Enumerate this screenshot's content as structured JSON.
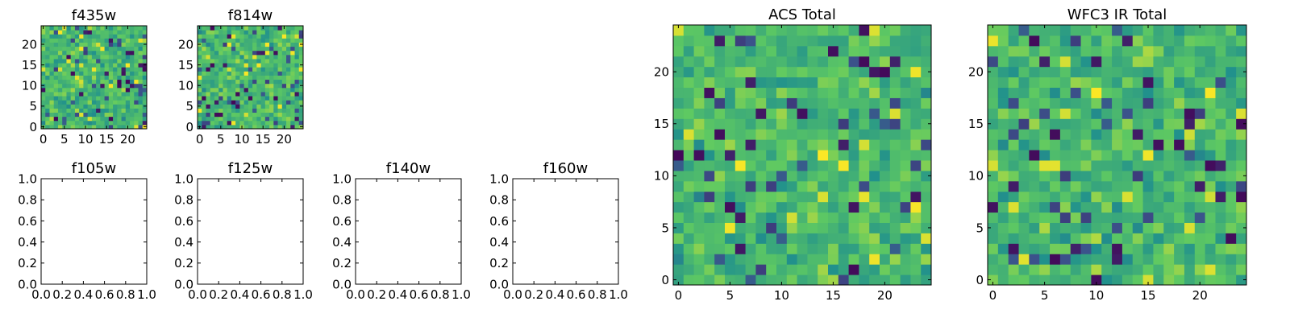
{
  "colors": {
    "background": "#ffffff",
    "axes": "#000000",
    "colormap": "viridis",
    "colormap_stops": [
      "#440154",
      "#3b528b",
      "#21918c",
      "#5ec962",
      "#fde725"
    ]
  },
  "chart_data": [
    {
      "id": "f435w",
      "type": "heatmap",
      "title": "f435w",
      "rows": 25,
      "cols": 25,
      "xlim": [
        -0.5,
        24.5
      ],
      "ylim": [
        -0.5,
        24.5
      ],
      "xticks": [
        0,
        5,
        10,
        15,
        20
      ],
      "yticks": [
        0,
        5,
        10,
        15,
        20
      ],
      "value_range": [
        0,
        1
      ],
      "seed": 4351,
      "grid": false
    },
    {
      "id": "f814w",
      "type": "heatmap",
      "title": "f814w",
      "rows": 25,
      "cols": 25,
      "xlim": [
        -0.5,
        24.5
      ],
      "ylim": [
        -0.5,
        24.5
      ],
      "xticks": [
        0,
        5,
        10,
        15,
        20
      ],
      "yticks": [
        0,
        5,
        10,
        15,
        20
      ],
      "value_range": [
        0,
        1
      ],
      "seed": 8141,
      "grid": false
    },
    {
      "id": "f105w",
      "type": "scatter",
      "title": "f105w",
      "xlim": [
        0,
        1
      ],
      "ylim": [
        0,
        1
      ],
      "xticks": [
        "0.0",
        "0.2",
        "0.4",
        "0.6",
        "0.8",
        "1.0"
      ],
      "yticks": [
        "0.0",
        "0.2",
        "0.4",
        "0.6",
        "0.8",
        "1.0"
      ],
      "series": [],
      "grid": false
    },
    {
      "id": "f125w",
      "type": "scatter",
      "title": "f125w",
      "xlim": [
        0,
        1
      ],
      "ylim": [
        0,
        1
      ],
      "xticks": [
        "0.0",
        "0.2",
        "0.4",
        "0.6",
        "0.8",
        "1.0"
      ],
      "yticks": [
        "0.0",
        "0.2",
        "0.4",
        "0.6",
        "0.8",
        "1.0"
      ],
      "series": [],
      "grid": false
    },
    {
      "id": "f140w",
      "type": "scatter",
      "title": "f140w",
      "xlim": [
        0,
        1
      ],
      "ylim": [
        0,
        1
      ],
      "xticks": [
        "0.0",
        "0.2",
        "0.4",
        "0.6",
        "0.8",
        "1.0"
      ],
      "yticks": [
        "0.0",
        "0.2",
        "0.4",
        "0.6",
        "0.8",
        "1.0"
      ],
      "series": [],
      "grid": false
    },
    {
      "id": "f160w",
      "type": "scatter",
      "title": "f160w",
      "xlim": [
        0,
        1
      ],
      "ylim": [
        0,
        1
      ],
      "xticks": [
        "0.0",
        "0.2",
        "0.4",
        "0.6",
        "0.8",
        "1.0"
      ],
      "yticks": [
        "0.0",
        "0.2",
        "0.4",
        "0.6",
        "0.8",
        "1.0"
      ],
      "series": [],
      "grid": false
    },
    {
      "id": "acs-total",
      "type": "heatmap",
      "title": "ACS Total",
      "rows": 25,
      "cols": 25,
      "xlim": [
        -0.5,
        24.5
      ],
      "ylim": [
        -0.5,
        24.5
      ],
      "xticks": [
        0,
        5,
        10,
        15,
        20
      ],
      "yticks": [
        0,
        5,
        10,
        15,
        20
      ],
      "value_range": [
        0,
        1
      ],
      "seed": 2207,
      "grid": false
    },
    {
      "id": "wfc3-ir-total",
      "type": "heatmap",
      "title": "WFC3 IR Total",
      "rows": 25,
      "cols": 25,
      "xlim": [
        -0.5,
        24.5
      ],
      "ylim": [
        -0.5,
        24.5
      ],
      "xticks": [
        0,
        5,
        10,
        15,
        20
      ],
      "yticks": [
        0,
        5,
        10,
        15,
        20
      ],
      "value_range": [
        0,
        1
      ],
      "seed": 3113,
      "grid": false
    }
  ]
}
